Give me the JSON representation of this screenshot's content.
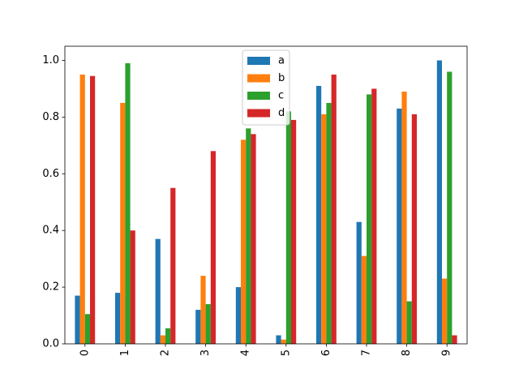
{
  "chart_data": {
    "type": "bar",
    "title": "",
    "xlabel": "",
    "ylabel": "",
    "categories": [
      "0",
      "1",
      "2",
      "3",
      "4",
      "5",
      "6",
      "7",
      "8",
      "9"
    ],
    "series": [
      {
        "name": "a",
        "color": "#1f77b4",
        "values": [
          0.17,
          0.18,
          0.37,
          0.12,
          0.2,
          0.03,
          0.91,
          0.43,
          0.83,
          1.0
        ]
      },
      {
        "name": "b",
        "color": "#ff7f0e",
        "values": [
          0.95,
          0.85,
          0.03,
          0.24,
          0.72,
          0.015,
          0.81,
          0.31,
          0.89,
          0.23
        ]
      },
      {
        "name": "c",
        "color": "#2ca02c",
        "values": [
          0.105,
          0.99,
          0.055,
          0.14,
          0.76,
          0.82,
          0.85,
          0.88,
          0.15,
          0.96
        ]
      },
      {
        "name": "d",
        "color": "#d62728",
        "values": [
          0.945,
          0.4,
          0.55,
          0.68,
          0.74,
          0.79,
          0.95,
          0.9,
          0.81,
          0.03
        ]
      }
    ],
    "ylim": [
      0,
      1.05
    ],
    "yticks": [
      "0.0",
      "0.2",
      "0.4",
      "0.6",
      "0.8",
      "1.0"
    ],
    "legend": {
      "position": "top-center"
    },
    "grid": false
  }
}
